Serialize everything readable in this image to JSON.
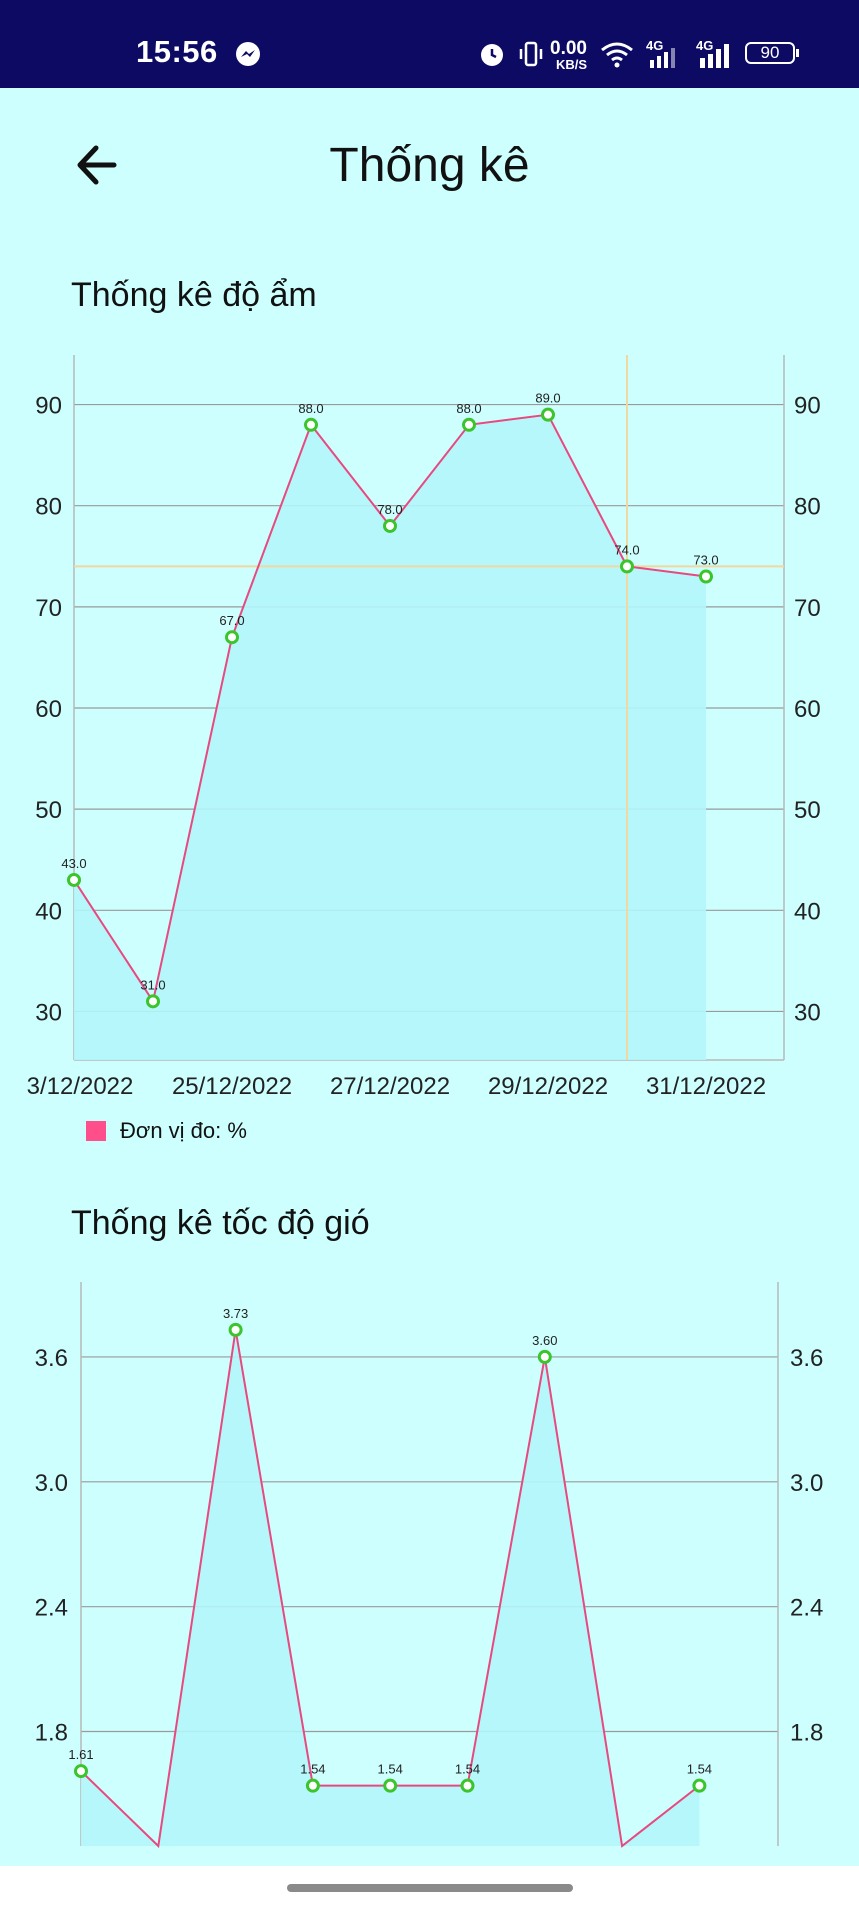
{
  "status_bar": {
    "time": "15:56",
    "speed_value": "0.00",
    "speed_unit": "KB/S",
    "network_1": "4G",
    "network_2": "4G",
    "battery": "90",
    "icons": [
      "messenger-icon",
      "alarm-icon",
      "vibrate-icon",
      "wifi-icon",
      "signal-icon",
      "signal-icon",
      "battery-icon"
    ]
  },
  "header": {
    "title": "Thống kê",
    "back_icon": "arrow-left-icon"
  },
  "humidity_section": {
    "title": "Thống kê độ ẩm",
    "legend_label": "Đơn vị đo: %"
  },
  "wind_section": {
    "title": "Thống kê tốc độ gió"
  },
  "colors": {
    "background": "#ccfffe",
    "status_bar": "#0c0a63",
    "line": "#e8497f",
    "fill": "#b3f6fb",
    "point": "#3bc42b",
    "grid": "#9a9a9a",
    "highlight": "#f0d8a0",
    "legend": "#ff4f8a"
  },
  "chart_data": [
    {
      "type": "line",
      "title": "Thống kê độ ẩm",
      "x_tick_labels": [
        "3/12/2022",
        "25/12/2022",
        "27/12/2022",
        "29/12/2022",
        "31/12/2022"
      ],
      "series": [
        {
          "name": "Đơn vị đo: %",
          "values": [
            43.0,
            31.0,
            67.0,
            88.0,
            78.0,
            88.0,
            89.0,
            74.0,
            73.0
          ],
          "value_labels": [
            "43.0",
            "31.0",
            "67.0",
            "88.0",
            "78.0",
            "88.0",
            "89.0",
            "74.0",
            "73.0"
          ]
        }
      ],
      "ylim": [
        25.2,
        94.9
      ],
      "y_ticks": [
        30,
        40,
        50,
        60,
        70,
        80,
        90
      ],
      "y_tick_labels": [
        "30",
        "40",
        "50",
        "60",
        "70",
        "80",
        "90"
      ],
      "right_axis": true,
      "filled": true,
      "grid": true,
      "highlight": {
        "index": 7,
        "value": 74.0
      },
      "legend": "bottom-left"
    },
    {
      "type": "line",
      "title": "Thống kê tốc độ gió",
      "series": [
        {
          "values": [
            1.61,
            1.25,
            3.73,
            1.54,
            1.54,
            1.54,
            3.6,
            1.25,
            1.54
          ],
          "value_labels": [
            "1.61",
            "",
            "3.73",
            "1.54",
            "1.54",
            "1.54",
            "3.60",
            "",
            "1.54"
          ]
        }
      ],
      "ylim": [
        1.25,
        3.96
      ],
      "y_ticks": [
        1.8,
        2.4,
        3.0,
        3.6
      ],
      "y_tick_labels": [
        "1.8",
        "2.4",
        "3.0",
        "3.6"
      ],
      "right_axis": true,
      "filled": true,
      "grid": true
    }
  ]
}
